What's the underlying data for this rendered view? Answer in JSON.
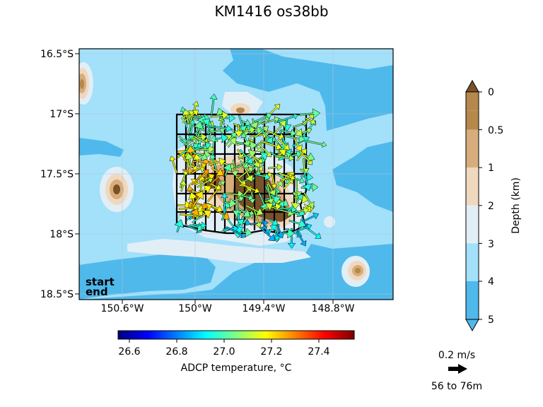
{
  "title": "KM1416 os38bb",
  "map": {
    "lat_ticks": [
      "16.5°S",
      "17°S",
      "17.5°S",
      "18°S",
      "18.5°S"
    ],
    "lon_ticks": [
      "150.6°W",
      "150°W",
      "149.4°W",
      "148.8°W"
    ],
    "start_label": "start",
    "end_label": "end",
    "colors": {
      "start": "#007a00",
      "end": "#e00000",
      "track": "#000000"
    }
  },
  "depth_colorbar": {
    "label": "Depth (km)",
    "ticks": [
      "0",
      "0.5",
      "1",
      "2",
      "3",
      "4",
      "5"
    ],
    "colors": [
      "#4fb9ec",
      "#a3e0fa",
      "#e2eef6",
      "#f0d8bf",
      "#d6ad7b",
      "#b6884c",
      "#7a5128"
    ]
  },
  "temp_colorbar": {
    "label": "ADCP temperature, °C",
    "ticks": [
      "26.6",
      "26.8",
      "27.0",
      "27.2",
      "27.4"
    ],
    "min": 26.53,
    "max": 27.55
  },
  "scale": {
    "speed_label": "0.2 m/s",
    "depth_range_label": "56 to 76m"
  }
}
